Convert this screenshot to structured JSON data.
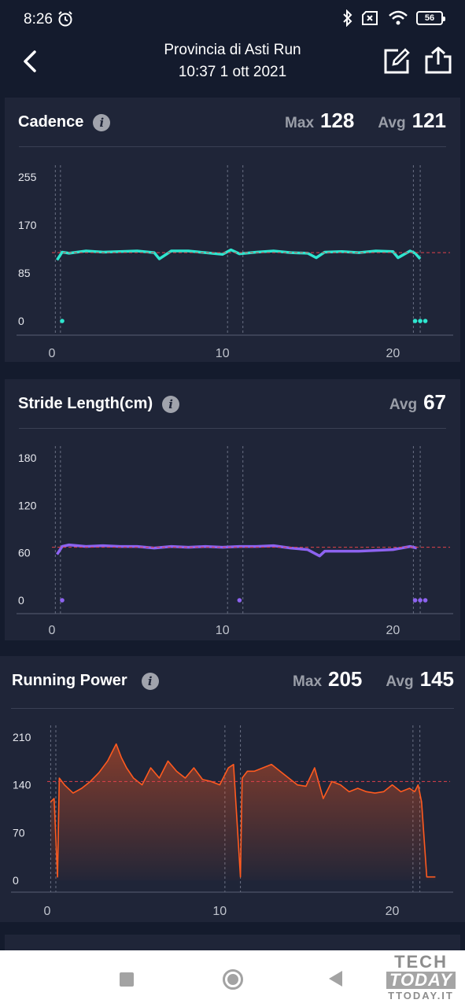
{
  "status_bar": {
    "time": "8:26",
    "battery": "56",
    "icons": [
      "alarm-icon",
      "bluetooth-icon",
      "no-sim-icon",
      "wifi-icon",
      "battery-icon"
    ]
  },
  "header": {
    "title": "Provincia di Asti Run",
    "subtitle": "10:37 1 ott 2021"
  },
  "cadence": {
    "title": "Cadence",
    "max_label": "Max",
    "max_value": "128",
    "avg_label": "Avg",
    "avg_value": "121"
  },
  "stride": {
    "title": "Stride Length(cm)",
    "avg_label": "Avg",
    "avg_value": "67"
  },
  "power": {
    "title": "Running Power",
    "max_label": "Max",
    "max_value": "205",
    "avg_label": "Avg",
    "avg_value": "145"
  },
  "colors": {
    "cadence": "#2ee6cf",
    "stride": "#8d63f0",
    "power": "#ff5a1f",
    "avg_line": "#e0414b"
  },
  "watermark": {
    "line1": "TECH",
    "line2": "TODAY",
    "line3": "TTODAY.IT"
  },
  "chart_data": [
    {
      "type": "line",
      "name": "cadence",
      "x_ticks": [
        "0",
        "10",
        "20"
      ],
      "y_ticks": [
        "255",
        "170",
        "85",
        "0"
      ],
      "xlim": [
        0,
        23
      ],
      "ylim": [
        0,
        255
      ],
      "avg": 121,
      "x": [
        0.3,
        0.6,
        1,
        2,
        3,
        4,
        5,
        6,
        6.3,
        7,
        8,
        9,
        10,
        10.5,
        11,
        12,
        13,
        14,
        15,
        15.5,
        16,
        17,
        18,
        19,
        20,
        20.3,
        21,
        21.3,
        21.6
      ],
      "y": [
        108,
        122,
        120,
        124,
        122,
        123,
        124,
        121,
        110,
        124,
        124,
        121,
        118,
        126,
        119,
        122,
        124,
        121,
        120,
        112,
        122,
        123,
        121,
        124,
        123,
        112,
        124,
        120,
        110
      ]
    },
    {
      "type": "line",
      "name": "stride",
      "x_ticks": [
        "0",
        "10",
        "20"
      ],
      "y_ticks": [
        "180",
        "120",
        "60",
        "0"
      ],
      "xlim": [
        0,
        23
      ],
      "ylim": [
        0,
        180
      ],
      "avg": 67,
      "x": [
        0.3,
        0.6,
        1,
        2,
        3,
        4,
        5,
        6,
        7,
        8,
        9,
        10,
        11,
        12,
        13,
        14,
        15,
        15.7,
        16,
        17,
        18,
        19,
        20,
        21,
        21.4
      ],
      "y": [
        58,
        68,
        70,
        68,
        69,
        68,
        68,
        66,
        68,
        67,
        68,
        67,
        68,
        68,
        69,
        66,
        64,
        56,
        62,
        62,
        62,
        63,
        64,
        68,
        66
      ]
    },
    {
      "type": "area",
      "name": "power",
      "x_ticks": [
        "0",
        "10",
        "20"
      ],
      "y_ticks": [
        "210",
        "140",
        "70",
        "0"
      ],
      "xlim": [
        0,
        23
      ],
      "ylim": [
        0,
        210
      ],
      "avg": 145,
      "x": [
        0.2,
        0.4,
        0.6,
        0.7,
        1,
        1.5,
        2,
        2.5,
        3,
        3.5,
        4,
        4.3,
        4.6,
        5,
        5.5,
        6,
        6.5,
        7,
        7.5,
        8,
        8.5,
        9,
        9.5,
        10,
        10.5,
        10.8,
        11.2,
        11.3,
        11.6,
        12,
        12.5,
        13,
        13.5,
        14,
        14.5,
        15,
        15.5,
        16,
        16.5,
        17,
        17.5,
        18,
        18.5,
        19,
        19.5,
        20,
        20.5,
        21,
        21.3,
        21.5,
        21.7,
        22,
        22.5
      ],
      "y": [
        115,
        120,
        5,
        150,
        140,
        128,
        135,
        145,
        158,
        175,
        200,
        180,
        165,
        150,
        140,
        165,
        150,
        175,
        160,
        150,
        165,
        148,
        145,
        140,
        165,
        170,
        5,
        150,
        160,
        160,
        165,
        170,
        160,
        150,
        140,
        138,
        165,
        120,
        145,
        140,
        130,
        135,
        130,
        128,
        130,
        140,
        130,
        135,
        130,
        140,
        115,
        5,
        5
      ]
    }
  ]
}
